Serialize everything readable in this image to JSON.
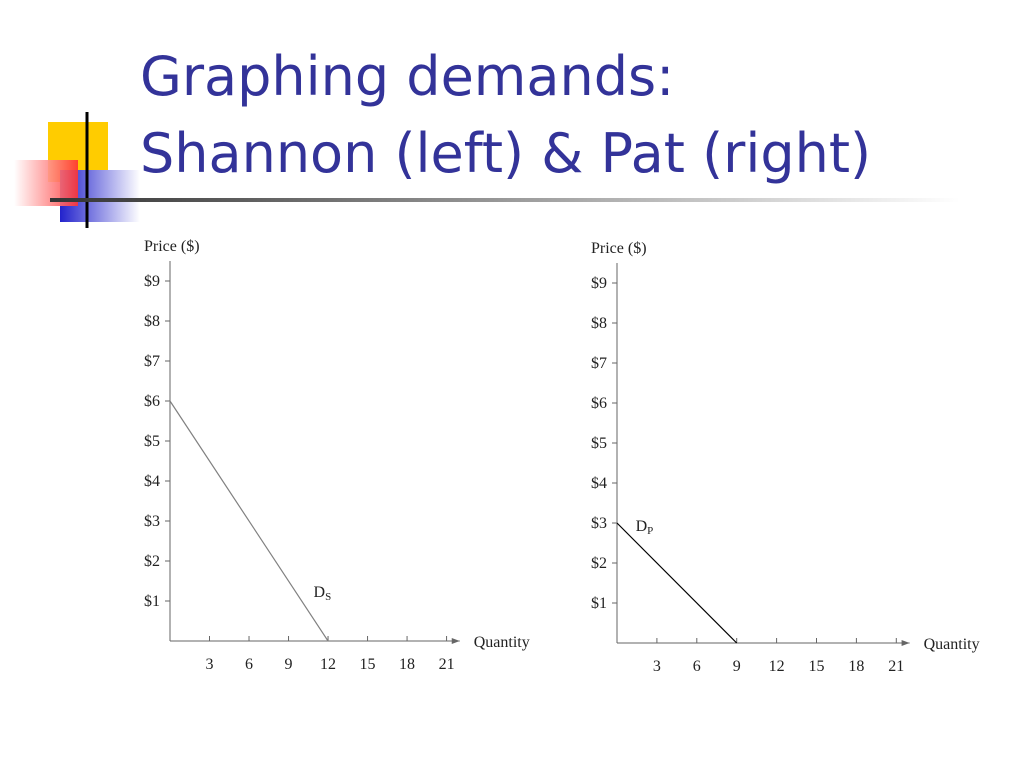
{
  "title": [
    "Graphing demands:",
    "Shannon (left) & Pat (right)"
  ],
  "chart_data": [
    {
      "type": "line",
      "y_label": "Price ($)",
      "x_label": "Quantity",
      "x": [
        0,
        12
      ],
      "series": [
        {
          "label": {
            "main": "D",
            "sub": "S"
          },
          "color": "#808080",
          "values": [
            6,
            0
          ]
        }
      ],
      "xlim": [
        0,
        22
      ],
      "ylim": [
        0,
        9.5
      ],
      "xticks": [
        3,
        6,
        9,
        12,
        15,
        18,
        21
      ],
      "yticks": [
        {
          "value": 1,
          "label": "$1"
        },
        {
          "value": 2,
          "label": "$2"
        },
        {
          "value": 3,
          "label": "$3"
        },
        {
          "value": 4,
          "label": "$4"
        },
        {
          "value": 5,
          "label": "$5"
        },
        {
          "value": 6,
          "label": "$6"
        },
        {
          "value": 7,
          "label": "$7"
        },
        {
          "value": 8,
          "label": "$8"
        },
        {
          "value": 9,
          "label": "$9"
        }
      ]
    },
    {
      "type": "line",
      "y_label": "Price ($)",
      "x_label": "Quantity",
      "x": [
        0,
        9
      ],
      "series": [
        {
          "label": {
            "main": "D",
            "sub": "P"
          },
          "color": "#000000",
          "values": [
            3,
            0
          ]
        }
      ],
      "xlim": [
        0,
        22
      ],
      "ylim": [
        0,
        9.5
      ],
      "xticks": [
        3,
        6,
        9,
        12,
        15,
        18,
        21
      ],
      "yticks": [
        {
          "value": 1,
          "label": "$1"
        },
        {
          "value": 2,
          "label": "$2"
        },
        {
          "value": 3,
          "label": "$3"
        },
        {
          "value": 4,
          "label": "$4"
        },
        {
          "value": 5,
          "label": "$5"
        },
        {
          "value": 6,
          "label": "$6"
        },
        {
          "value": 7,
          "label": "$7"
        },
        {
          "value": 8,
          "label": "$8"
        },
        {
          "value": 9,
          "label": "$9"
        }
      ]
    }
  ]
}
